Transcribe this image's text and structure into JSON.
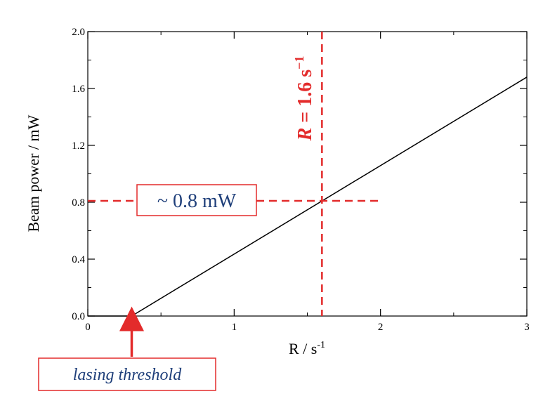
{
  "colors": {
    "annotation": "#e32b2b",
    "annotation_text": "#1f3f7a",
    "line": "#000000"
  },
  "chart_data": {
    "type": "line",
    "xlabel_main": "R / s",
    "xlabel_sup": "-1",
    "ylabel": "Beam power / mW",
    "xlim": [
      0,
      3
    ],
    "ylim": [
      0,
      2.0
    ],
    "x_ticks": [
      "0",
      "1",
      "2",
      "3"
    ],
    "y_ticks": [
      "0.0",
      "0.4",
      "0.8",
      "1.2",
      "1.6",
      "2.0"
    ],
    "x_tick_values": [
      0,
      1,
      2,
      3
    ],
    "y_tick_values": [
      0,
      0.4,
      0.8,
      1.2,
      1.6,
      2.0
    ],
    "grid": false,
    "series": [
      {
        "x": [
          0,
          0.3,
          3.0
        ],
        "y": [
          0,
          0,
          1.68
        ]
      }
    ],
    "annotations": {
      "vertical_line_x": 1.6,
      "vertical_line_y_range": [
        0,
        2.0
      ],
      "horizontal_line_y": 0.81,
      "horizontal_line_x_range": [
        0,
        2.0
      ],
      "power_callout": "~ 0.8 mW",
      "r_label_prefix": "R",
      "r_label_middle": " = 1.6 s",
      "r_label_sup": "−1",
      "threshold_x": 0.3,
      "threshold_label": "lasing threshold"
    }
  }
}
